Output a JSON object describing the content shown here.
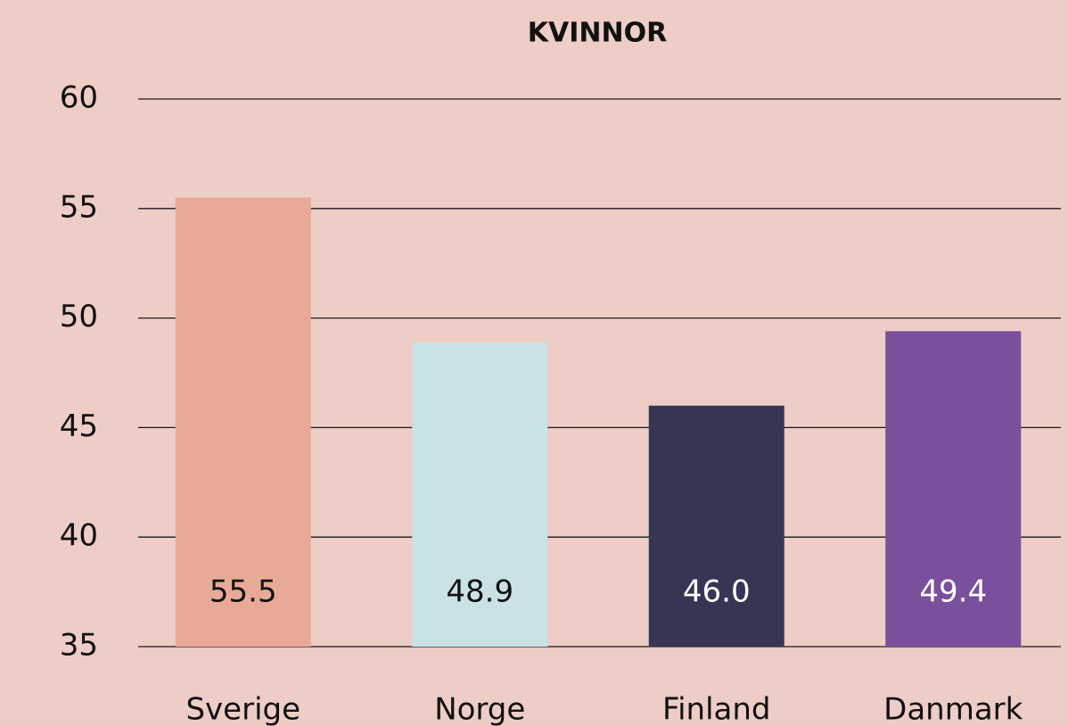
{
  "chart_data": {
    "type": "bar",
    "title": "KVINNOR",
    "categories": [
      "Sverige",
      "Norge",
      "Finland",
      "Danmark"
    ],
    "values": [
      55.5,
      48.9,
      46.0,
      49.4
    ],
    "value_labels": [
      "55.5",
      "48.9",
      "46.0",
      "49.4"
    ],
    "colors": [
      "#e8aa96",
      "#c8e2e6",
      "#353654",
      "#7a4f9c"
    ],
    "ylim": [
      35,
      60
    ],
    "yticks": [
      35,
      40,
      45,
      50,
      55,
      60
    ],
    "grid": true
  }
}
